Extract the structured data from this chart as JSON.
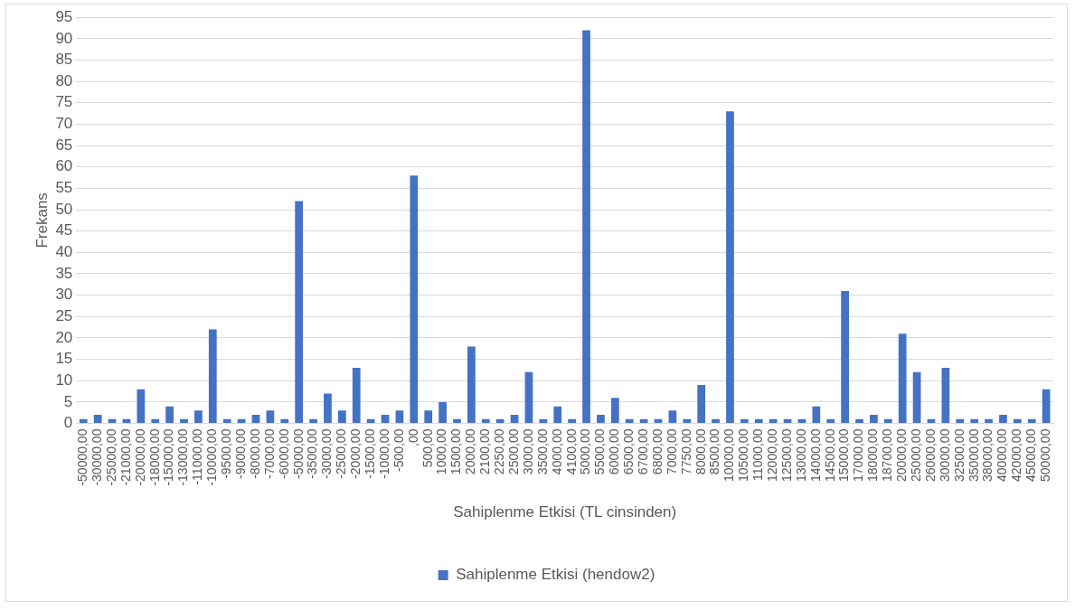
{
  "chart_data": {
    "type": "bar",
    "xlabel": "Sahiplenme Etkisi (TL cinsinden)",
    "ylabel": "Frekans",
    "categories": [
      "-50000,00",
      "-30000,00",
      "-25000,00",
      "-21000,00",
      "-20000,00",
      "-18000,00",
      "-15000,00",
      "-13000,00",
      "-11000,00",
      "-10000,00",
      "-9500,00",
      "-9000,00",
      "-8000,00",
      "-7000,00",
      "-6000,00",
      "-5000,00",
      "-3500,00",
      "-3000,00",
      "-2500,00",
      "-2000,00",
      "-1500,00",
      "-1000,00",
      "-500,00",
      ",00",
      "500,00",
      "1000,00",
      "1500,00",
      "2000,00",
      "2100,00",
      "2250,00",
      "2500,00",
      "3000,00",
      "3500,00",
      "4000,00",
      "4100,00",
      "5000,00",
      "5500,00",
      "6000,00",
      "6500,00",
      "6700,00",
      "6800,00",
      "7000,00",
      "7750,00",
      "8000,00",
      "8500,00",
      "10000,00",
      "10500,00",
      "11000,00",
      "12000,00",
      "12500,00",
      "13000,00",
      "14000,00",
      "14500,00",
      "15000,00",
      "17000,00",
      "18000,00",
      "18700,00",
      "20000,00",
      "25000,00",
      "26000,00",
      "30000,00",
      "32500,00",
      "35000,00",
      "38000,00",
      "40000,00",
      "42000,00",
      "45000,00",
      "50000,00"
    ],
    "series": [
      {
        "name": "Sahiplenme Etkisi (hendow2)",
        "color": "#4472c4",
        "values": [
          1,
          2,
          1,
          1,
          8,
          1,
          4,
          1,
          3,
          22,
          1,
          1,
          2,
          3,
          1,
          52,
          1,
          7,
          3,
          13,
          1,
          2,
          3,
          58,
          3,
          5,
          1,
          18,
          1,
          1,
          2,
          12,
          1,
          4,
          1,
          92,
          2,
          6,
          1,
          1,
          1,
          3,
          1,
          9,
          1,
          73,
          1,
          1,
          1,
          1,
          1,
          4,
          1,
          31,
          1,
          2,
          1,
          21,
          12,
          1,
          13,
          1,
          1,
          1,
          2,
          1,
          1,
          8
        ]
      }
    ],
    "ylim": [
      0,
      95
    ],
    "yticks": [
      0,
      5,
      10,
      15,
      20,
      25,
      30,
      35,
      40,
      45,
      50,
      55,
      60,
      65,
      70,
      75,
      80,
      85,
      90,
      95
    ],
    "grid": "y",
    "legend": "bottom"
  }
}
